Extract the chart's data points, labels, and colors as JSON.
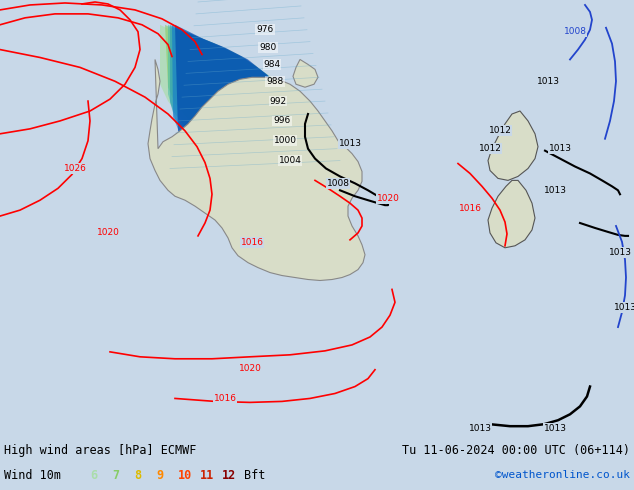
{
  "title_left": "High wind areas [hPa] ECMWF",
  "title_right": "Tu 11-06-2024 00:00 UTC (06+114)",
  "legend_label": "Wind 10m",
  "legend_bft": [
    "6",
    "7",
    "8",
    "9",
    "10",
    "11",
    "12",
    "Bft"
  ],
  "legend_bft_colors": [
    "#aaddaa",
    "#88cc66",
    "#ffcc00",
    "#ff8800",
    "#ff4400",
    "#cc0000",
    "#880000",
    "#000000"
  ],
  "watermark": "©weatheronline.co.uk",
  "watermark_color": "#0055cc",
  "bg_color": "#d8e8f0",
  "land_color": "#e8e8d8",
  "australia_fill": "#ccddaa",
  "bottom_bar_color": "#ffffff",
  "title_fontsize": 9,
  "legend_fontsize": 9
}
